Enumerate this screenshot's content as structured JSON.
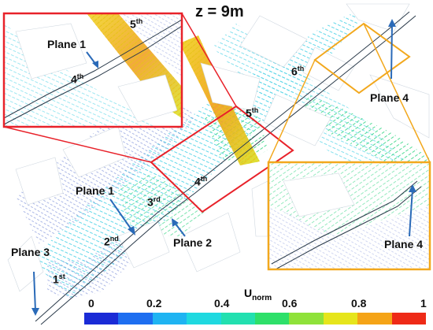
{
  "title": "z = 9m",
  "inset_red": {
    "plane_label": "Plane 1",
    "intersections": [
      {
        "num": "4",
        "suffix": "th"
      },
      {
        "num": "5",
        "suffix": "th"
      }
    ]
  },
  "inset_yellow": {
    "plane_label": "Plane 4"
  },
  "main": {
    "plane_labels": {
      "plane1": "Plane 1",
      "plane2": "Plane 2",
      "plane3": "Plane 3",
      "plane4": "Plane 4"
    },
    "intersections": [
      {
        "num": "1",
        "suffix": "st"
      },
      {
        "num": "2",
        "suffix": "nd"
      },
      {
        "num": "3",
        "suffix": "rd"
      },
      {
        "num": "4",
        "suffix": "th"
      },
      {
        "num": "5",
        "suffix": "th"
      },
      {
        "num": "6",
        "suffix": "th"
      }
    ]
  },
  "colorbar": {
    "title": "U",
    "title_sub": "norm",
    "ticks": [
      "0",
      "0.2",
      "0.4",
      "0.6",
      "0.8",
      "1"
    ],
    "colors": [
      "#1a2bd6",
      "#1e6ef0",
      "#1fb4f2",
      "#1fd9e0",
      "#22e0b0",
      "#2ee06a",
      "#8fe23a",
      "#e6e51c",
      "#f5a417",
      "#ee2a17"
    ]
  },
  "colors": {
    "red_box": "#e8222a",
    "yellow_box": "#f2a81d",
    "arrow": "#2a6ab8"
  }
}
